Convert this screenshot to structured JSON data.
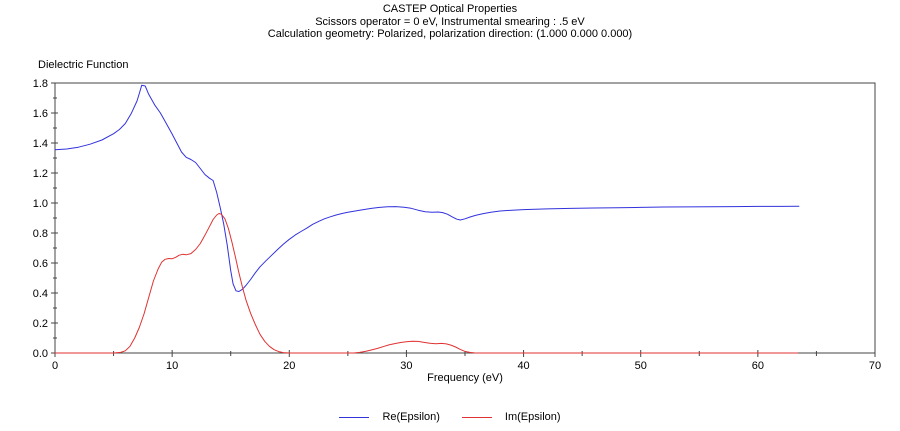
{
  "title": {
    "line1": "CASTEP Optical Properties",
    "line2": "Scissors operator = 0 eV, Instrumental smearing : .5 eV",
    "line3": "Calculation geometry: Polarized, polarization direction: (1.000 0.000 0.000)"
  },
  "chart_data": {
    "type": "line",
    "title": "Dielectric Function",
    "xlabel": "Frequency (eV)",
    "ylabel": "",
    "xlim": [
      0,
      70
    ],
    "ylim": [
      0,
      1.8
    ],
    "grid": false,
    "legend_position": "bottom",
    "axis_color": "#444444",
    "x_major_ticks": [
      0,
      10,
      20,
      30,
      40,
      50,
      60,
      70
    ],
    "x_tick_labels": [
      "0",
      "10",
      "20",
      "30",
      "40",
      "50",
      "60",
      "70"
    ],
    "y_major_ticks": [
      0.0,
      0.2,
      0.4,
      0.6,
      0.8,
      1.0,
      1.2,
      1.4,
      1.6,
      1.8
    ],
    "y_tick_labels": [
      "0.0",
      "0.2",
      "0.4",
      "0.6",
      "0.8",
      "1.0",
      "1.2",
      "1.4",
      "1.6",
      "1.8"
    ],
    "series": [
      {
        "name": "Re(Epsilon)",
        "color": "#3232dd",
        "points": [
          [
            0,
            1.355
          ],
          [
            1,
            1.36
          ],
          [
            2,
            1.372
          ],
          [
            3,
            1.392
          ],
          [
            4,
            1.42
          ],
          [
            5,
            1.462
          ],
          [
            5.5,
            1.49
          ],
          [
            6,
            1.53
          ],
          [
            6.5,
            1.595
          ],
          [
            7,
            1.68
          ],
          [
            7.2,
            1.73
          ],
          [
            7.4,
            1.785
          ],
          [
            7.7,
            1.78
          ],
          [
            8,
            1.725
          ],
          [
            8.5,
            1.655
          ],
          [
            9,
            1.6
          ],
          [
            9.5,
            1.53
          ],
          [
            10,
            1.46
          ],
          [
            10.4,
            1.4
          ],
          [
            10.8,
            1.34
          ],
          [
            11.2,
            1.305
          ],
          [
            11.6,
            1.29
          ],
          [
            12,
            1.27
          ],
          [
            12.4,
            1.23
          ],
          [
            12.8,
            1.19
          ],
          [
            13.2,
            1.165
          ],
          [
            13.5,
            1.15
          ],
          [
            13.8,
            1.07
          ],
          [
            14.1,
            0.97
          ],
          [
            14.4,
            0.86
          ],
          [
            14.7,
            0.72
          ],
          [
            15,
            0.55
          ],
          [
            15.2,
            0.46
          ],
          [
            15.45,
            0.415
          ],
          [
            15.7,
            0.41
          ],
          [
            16,
            0.425
          ],
          [
            16.3,
            0.45
          ],
          [
            16.7,
            0.49
          ],
          [
            17.1,
            0.535
          ],
          [
            17.5,
            0.575
          ],
          [
            18,
            0.615
          ],
          [
            18.5,
            0.652
          ],
          [
            19,
            0.69
          ],
          [
            19.5,
            0.726
          ],
          [
            20,
            0.758
          ],
          [
            20.5,
            0.786
          ],
          [
            21,
            0.81
          ],
          [
            21.5,
            0.833
          ],
          [
            22,
            0.858
          ],
          [
            22.5,
            0.877
          ],
          [
            23,
            0.895
          ],
          [
            23.5,
            0.908
          ],
          [
            24,
            0.92
          ],
          [
            24.5,
            0.93
          ],
          [
            25,
            0.938
          ],
          [
            26,
            0.952
          ],
          [
            27,
            0.964
          ],
          [
            27.7,
            0.971
          ],
          [
            28.4,
            0.975
          ],
          [
            29.1,
            0.976
          ],
          [
            29.8,
            0.972
          ],
          [
            30.4,
            0.965
          ],
          [
            31,
            0.952
          ],
          [
            31.6,
            0.942
          ],
          [
            32.2,
            0.938
          ],
          [
            32.7,
            0.94
          ],
          [
            33.1,
            0.936
          ],
          [
            33.5,
            0.925
          ],
          [
            33.9,
            0.908
          ],
          [
            34.3,
            0.892
          ],
          [
            34.6,
            0.887
          ],
          [
            35,
            0.895
          ],
          [
            35.4,
            0.906
          ],
          [
            35.9,
            0.917
          ],
          [
            36.5,
            0.928
          ],
          [
            37.2,
            0.938
          ],
          [
            38,
            0.947
          ],
          [
            39,
            0.952
          ],
          [
            40,
            0.956
          ],
          [
            42,
            0.961
          ],
          [
            44,
            0.964
          ],
          [
            46,
            0.967
          ],
          [
            48,
            0.969
          ],
          [
            50,
            0.971
          ],
          [
            52,
            0.973
          ],
          [
            54,
            0.974
          ],
          [
            56,
            0.975
          ],
          [
            58,
            0.976
          ],
          [
            60,
            0.977
          ],
          [
            62,
            0.977
          ],
          [
            63.5,
            0.978
          ]
        ]
      },
      {
        "name": "Im(Epsilon)",
        "color": "#e03232",
        "points": [
          [
            0,
            0
          ],
          [
            5,
            0
          ],
          [
            5.6,
            0.004
          ],
          [
            6,
            0.015
          ],
          [
            6.4,
            0.045
          ],
          [
            6.8,
            0.1
          ],
          [
            7.2,
            0.17
          ],
          [
            7.6,
            0.26
          ],
          [
            8,
            0.37
          ],
          [
            8.4,
            0.48
          ],
          [
            8.8,
            0.56
          ],
          [
            9.1,
            0.605
          ],
          [
            9.4,
            0.625
          ],
          [
            9.7,
            0.63
          ],
          [
            10,
            0.628
          ],
          [
            10.3,
            0.638
          ],
          [
            10.6,
            0.652
          ],
          [
            10.9,
            0.658
          ],
          [
            11.2,
            0.655
          ],
          [
            11.6,
            0.663
          ],
          [
            12,
            0.69
          ],
          [
            12.4,
            0.73
          ],
          [
            12.8,
            0.785
          ],
          [
            13.2,
            0.845
          ],
          [
            13.5,
            0.89
          ],
          [
            13.8,
            0.92
          ],
          [
            14,
            0.93
          ],
          [
            14.2,
            0.925
          ],
          [
            14.5,
            0.895
          ],
          [
            14.8,
            0.83
          ],
          [
            15.1,
            0.74
          ],
          [
            15.4,
            0.64
          ],
          [
            15.7,
            0.535
          ],
          [
            16,
            0.44
          ],
          [
            16.3,
            0.355
          ],
          [
            16.7,
            0.265
          ],
          [
            17.1,
            0.19
          ],
          [
            17.5,
            0.125
          ],
          [
            17.9,
            0.078
          ],
          [
            18.3,
            0.045
          ],
          [
            18.7,
            0.022
          ],
          [
            19.1,
            0.009
          ],
          [
            19.5,
            0.003
          ],
          [
            20,
            0
          ],
          [
            25.5,
            0
          ],
          [
            26,
            0.004
          ],
          [
            26.5,
            0.011
          ],
          [
            27,
            0.02
          ],
          [
            27.5,
            0.03
          ],
          [
            28,
            0.042
          ],
          [
            28.5,
            0.054
          ],
          [
            29,
            0.063
          ],
          [
            29.5,
            0.07
          ],
          [
            30,
            0.075
          ],
          [
            30.5,
            0.078
          ],
          [
            31,
            0.077
          ],
          [
            31.5,
            0.071
          ],
          [
            32,
            0.065
          ],
          [
            32.5,
            0.062
          ],
          [
            33,
            0.064
          ],
          [
            33.4,
            0.061
          ],
          [
            33.8,
            0.053
          ],
          [
            34.2,
            0.04
          ],
          [
            34.6,
            0.024
          ],
          [
            35,
            0.011
          ],
          [
            35.4,
            0.004
          ],
          [
            35.8,
            0.001
          ],
          [
            36.2,
            0
          ],
          [
            63.4,
            0
          ]
        ]
      }
    ]
  }
}
